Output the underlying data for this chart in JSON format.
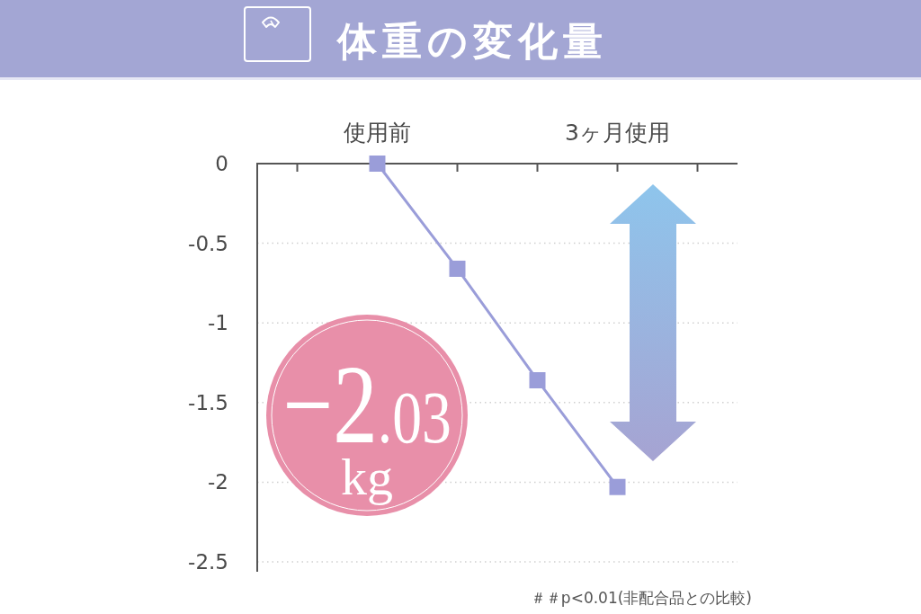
{
  "chart_data": {
    "type": "line",
    "title": "体重の変化量",
    "categories": [
      null,
      "使用前",
      null,
      null,
      "3ヶ月使用",
      null
    ],
    "values": [
      null,
      0,
      -0.66,
      -1.36,
      -2.03,
      null
    ],
    "color": "#9a9dd9",
    "ylim": [
      -2.5,
      0
    ],
    "yticks": [
      0,
      -0.5,
      -1,
      -1.5,
      -2,
      -2.5
    ],
    "grid": "y",
    "marker": "square",
    "annotations": [
      "−2.03 kg",
      "＃＃p<0.01(非配合品との比較)"
    ]
  }
}
